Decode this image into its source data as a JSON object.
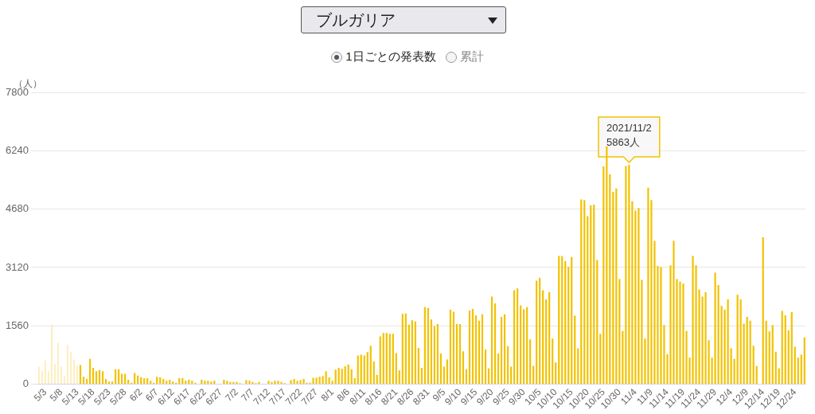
{
  "chart_data": {
    "type": "bar",
    "title": "ブルガリア",
    "ylabel": "（人）",
    "annotations": [
      "1日ごとの発表数",
      "累計",
      {
        "text": "2021/11/2\n5863人",
        "y": 5863
      }
    ],
    "categories": [
      null,
      null,
      "5/3",
      null,
      null,
      null,
      null,
      "5/8",
      null,
      null,
      null,
      null,
      "5/13",
      null,
      null,
      null,
      null,
      "5/18",
      null,
      null,
      null,
      null,
      "5/23",
      null,
      null,
      null,
      null,
      "5/28",
      null,
      null,
      null,
      null,
      "6/2",
      null,
      null,
      null,
      null,
      "6/7",
      null,
      null,
      null,
      null,
      "6/12",
      null,
      null,
      null,
      null,
      "6/17",
      null,
      null,
      null,
      null,
      "6/22",
      null,
      null,
      null,
      null,
      "6/27",
      null,
      null,
      null,
      null,
      "7/2",
      null,
      null,
      null,
      null,
      "7/7",
      null,
      null,
      null,
      null,
      "7/12",
      null,
      null,
      null,
      null,
      "7/17",
      null,
      null,
      null,
      null,
      "7/22",
      null,
      null,
      null,
      null,
      "7/27",
      null,
      null,
      null,
      null,
      "8/1",
      null,
      null,
      null,
      null,
      "8/6",
      null,
      null,
      null,
      null,
      "8/11",
      null,
      null,
      null,
      null,
      "8/16",
      null,
      null,
      null,
      null,
      "8/21",
      null,
      null,
      null,
      null,
      "8/26",
      null,
      null,
      null,
      null,
      "8/31",
      null,
      null,
      null,
      null,
      "9/5",
      null,
      null,
      null,
      null,
      "9/10",
      null,
      null,
      null,
      null,
      "9/15",
      null,
      null,
      null,
      null,
      "9/20",
      null,
      null,
      null,
      null,
      "9/25",
      null,
      null,
      null,
      null,
      "9/30",
      null,
      null,
      null,
      null,
      "10/5",
      null,
      null,
      null,
      null,
      "10/10",
      null,
      null,
      null,
      null,
      "10/15",
      null,
      null,
      null,
      null,
      "10/20",
      null,
      null,
      null,
      null,
      "10/25",
      null,
      null,
      null,
      null,
      "10/30",
      null,
      null,
      null,
      null,
      "11/4",
      null,
      null,
      null,
      null,
      "11/9",
      null,
      null,
      null,
      null,
      "11/14",
      null,
      null,
      null,
      null,
      "11/19",
      null,
      null,
      null,
      null,
      "11/24",
      null,
      null,
      null,
      null,
      "11/29",
      null,
      null,
      null,
      null,
      "12/4",
      null,
      null,
      null,
      null,
      "12/9",
      null,
      null,
      null,
      null,
      "12/14",
      null,
      null,
      null,
      null,
      "12/19",
      null,
      null,
      null,
      null,
      "12/24",
      null,
      null,
      null
    ],
    "values": [
      470,
      350,
      630,
      350,
      1600,
      540,
      1110,
      470,
      220,
      1050,
      870,
      660,
      490,
      510,
      200,
      140,
      680,
      440,
      350,
      380,
      350,
      140,
      70,
      70,
      400,
      400,
      280,
      280,
      120,
      40,
      300,
      230,
      190,
      160,
      160,
      90,
      40,
      200,
      190,
      140,
      90,
      120,
      70,
      40,
      160,
      160,
      90,
      120,
      90,
      40,
      0,
      120,
      90,
      90,
      70,
      90,
      0,
      0,
      120,
      90,
      60,
      60,
      60,
      30,
      0,
      110,
      90,
      60,
      30,
      60,
      0,
      0,
      90,
      60,
      90,
      90,
      60,
      30,
      0,
      110,
      140,
      90,
      110,
      140,
      40,
      40,
      170,
      170,
      200,
      220,
      350,
      180,
      90,
      390,
      440,
      410,
      480,
      530,
      400,
      160,
      770,
      790,
      770,
      860,
      1030,
      610,
      250,
      1280,
      1370,
      1370,
      1350,
      1350,
      830,
      370,
      1880,
      1890,
      1590,
      1710,
      1680,
      970,
      440,
      2060,
      2040,
      1730,
      1550,
      1610,
      820,
      470,
      660,
      1990,
      1940,
      1610,
      1610,
      880,
      400,
      1970,
      2010,
      1840,
      1700,
      1870,
      930,
      420,
      2340,
      2160,
      820,
      1800,
      1870,
      1020,
      470,
      2510,
      2560,
      2110,
      2000,
      2060,
      1200,
      490,
      2770,
      2840,
      2510,
      2270,
      2460,
      1220,
      580,
      3430,
      3430,
      3290,
      3140,
      3400,
      1830,
      960,
      4940,
      4920,
      4490,
      4780,
      4800,
      3320,
      1350,
      5820,
      6360,
      5610,
      5140,
      5230,
      2810,
      1420,
      5830,
      5863,
      4890,
      4640,
      4710,
      2790,
      1220,
      5250,
      4920,
      3830,
      3160,
      3130,
      1580,
      800,
      3180,
      3830,
      2810,
      2740,
      2690,
      1420,
      710,
      3430,
      3180,
      2530,
      2340,
      2460,
      1180,
      710,
      2980,
      2650,
      2090,
      1990,
      2270,
      960,
      680,
      2390,
      2270,
      1620,
      1800,
      1700,
      1030,
      490,
      0,
      3930,
      1700,
      1410,
      1580,
      870,
      420,
      1960,
      1840,
      1440,
      1930,
      1000,
      710,
      790,
      1250
    ],
    "colors": [
      "#fcefc4",
      "#fcefc4",
      "#fcefc4",
      "#fcefc4",
      "#fcefc4",
      "#fcefc4",
      "#fcefc4",
      "#fcefc4",
      "#fcefc4",
      "#fcefc4",
      "#fcefc4",
      "#fcefc4",
      "#fcefc4",
      "#f2c200",
      "#f2c200",
      "#f2c200",
      "#f2c200",
      "#f2c200",
      "#f2c200",
      "#f2c200",
      "#f2c200",
      "#f2c200",
      "#f2c200",
      "#f2c200",
      "#f2c200",
      "#f2c200",
      "#f2c200",
      "#f2c200",
      "#f2c200",
      "#f2c200",
      "#f2c200",
      "#f2c200",
      "#f2c200",
      "#f2c200",
      "#f2c200",
      "#f2c200",
      "#f2c200",
      "#f2c200",
      "#f2c200",
      "#f2c200",
      "#f2c200",
      "#f2c200",
      "#f2c200",
      "#f2c200",
      "#f2c200",
      "#f2c200",
      "#f2c200",
      "#f2c200",
      "#f2c200",
      "#f2c200",
      "#f2c200",
      "#f2c200",
      "#f2c200",
      "#f2c200",
      "#f2c200",
      "#f2c200",
      "#f2c200",
      "#f2c200",
      "#f2c200",
      "#f2c200",
      "#f2c200",
      "#f2c200",
      "#f2c200",
      "#f2c200",
      "#f2c200",
      "#f2c200",
      "#f2c200",
      "#f2c200",
      "#f2c200",
      "#f2c200",
      "#f2c200",
      "#f2c200",
      "#f2c200",
      "#f2c200",
      "#f2c200",
      "#f2c200",
      "#f2c200",
      "#f2c200",
      "#f2c200",
      "#f2c200",
      "#f2c200",
      "#f2c200",
      "#f2c200",
      "#f2c200",
      "#f2c200",
      "#f2c200",
      "#f2c200",
      "#f2c200",
      "#f2c200",
      "#f2c200",
      "#f2c200",
      "#f2c200",
      "#f2c200",
      "#f2c200",
      "#f2c200",
      "#f2c200",
      "#f2c200",
      "#f2c200",
      "#f2c200",
      "#f2c200",
      "#f2c200",
      "#f2c200",
      "#f2c200",
      "#f2c200",
      "#f2c200",
      "#f2c200",
      "#f2c200",
      "#f2c200",
      "#f2c200",
      "#f2c200",
      "#f2c200",
      "#f2c200",
      "#f2c200",
      "#f2c200",
      "#f2c200",
      "#f2c200",
      "#f2c200",
      "#f2c200",
      "#f2c200",
      "#f2c200",
      "#f2c200",
      "#f2c200",
      "#f2c200",
      "#f2c200",
      "#f2c200",
      "#f2c200",
      "#f2c200",
      "#f2c200",
      "#f2c200",
      "#f2c200",
      "#f2c200",
      "#f2c200",
      "#f2c200",
      "#f2c200",
      "#f2c200",
      "#f2c200",
      "#f2c200",
      "#f2c200",
      "#f2c200",
      "#f2c200",
      "#f2c200",
      "#f2c200",
      "#f2c200",
      "#f2c200",
      "#f2c200",
      "#f2c200",
      "#f2c200",
      "#f2c200",
      "#f2c200",
      "#f2c200",
      "#f2c200",
      "#f2c200",
      "#f2c200",
      "#f2c200",
      "#f2c200",
      "#f2c200",
      "#f2c200",
      "#f2c200",
      "#f2c200",
      "#f2c200",
      "#f2c200",
      "#f2c200",
      "#f2c200",
      "#f2c200",
      "#f2c200",
      "#f2c200",
      "#f2c200",
      "#f2c200",
      "#f2c200",
      "#f2c200",
      "#f2c200",
      "#f2c200",
      "#f2c200",
      "#f2c200",
      "#f2c200",
      "#f2c200",
      "#f2c200",
      "#f2c200",
      "#f2c200",
      "#f2c200",
      "#f2c200",
      "#f2c200",
      "#f2c200",
      "#f2c200",
      "#f2c200",
      "#f2c200",
      "#f2c200",
      "#f2c200",
      "#f2c200",
      "#f2c200",
      "#f2c200",
      "#f2c200",
      "#f2c200",
      "#f2c200",
      "#f2c200",
      "#f2c200",
      "#f2c200",
      "#f2c200",
      "#f2c200",
      "#f2c200",
      "#f2c200",
      "#f2c200",
      "#f2c200",
      "#f2c200",
      "#f2c200",
      "#f2c200",
      "#f2c200",
      "#f2c200",
      "#f2c200",
      "#f2c200",
      "#f2c200",
      "#f2c200",
      "#f2c200",
      "#f2c200",
      "#f2c200",
      "#f2c200",
      "#f2c200",
      "#f2c200",
      "#f2c200",
      "#f2c200",
      "#f2c200",
      "#f2c200",
      "#f2c200",
      "#f2c200",
      "#f2c200",
      "#f2c200",
      "#f2c200",
      "#f2c200",
      "#f2c200",
      "#f2c200",
      "#f2c200",
      "#f2c200",
      "#f2c200",
      "#f2c200",
      "#f2c200",
      "#f2c200",
      "#f2c200",
      "#f2c200",
      "#f2c200",
      "#f2c200",
      "#f2c200"
    ],
    "ylim": [
      0,
      7800
    ],
    "yticks": [
      0,
      1560,
      3120,
      4680,
      6240,
      7800
    ],
    "grid": "y"
  }
}
